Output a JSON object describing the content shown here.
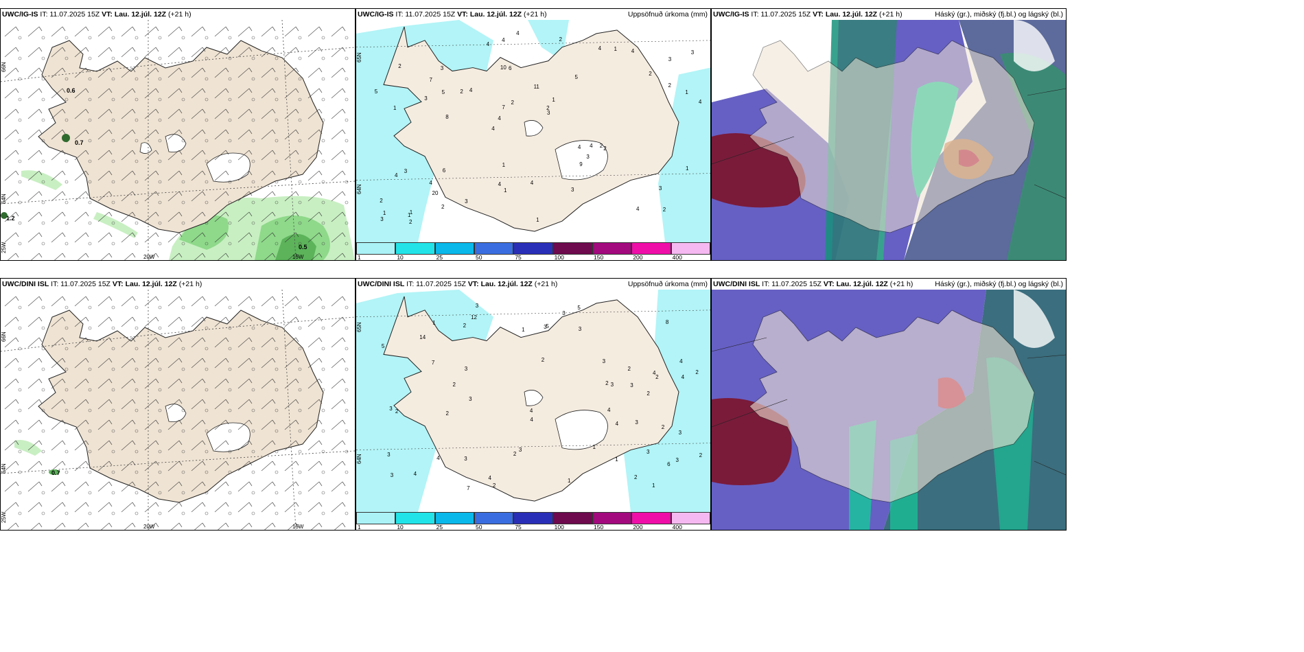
{
  "rows": [
    {
      "model": "UWC/IG-IS",
      "issue": "IT: 11.07.2025 15Z",
      "vt_label": "VT:",
      "vt_value": "Lau. 12.júl. 12Z",
      "lead": "(+21 h)",
      "wind_values": [
        "0.6",
        "0.7",
        "1.2",
        "0.5"
      ],
      "precip_values": [
        "2",
        "1",
        "3",
        "4",
        "5",
        "1",
        "10",
        "11",
        "3",
        "4",
        "2",
        "20",
        "6",
        "1",
        "2",
        "2",
        "4",
        "4",
        "4",
        "2",
        "4",
        "4",
        "7",
        "3",
        "4",
        "6",
        "4",
        "3",
        "2",
        "1",
        "2",
        "3",
        "9",
        "2",
        "1",
        "2",
        "1",
        "1",
        "3",
        "4",
        "2",
        "3",
        "3",
        "3",
        "4",
        "2",
        "3",
        "4",
        "4",
        "4",
        "8",
        "5",
        "7",
        "1",
        "1",
        "2",
        "4",
        "2",
        "1",
        "1",
        "3",
        "4",
        "5"
      ]
    },
    {
      "model": "UWC/DINI ISL",
      "issue": "IT: 11.07.2025 15Z",
      "vt_label": "VT:",
      "vt_value": "Lau. 12.júl. 12Z",
      "lead": "(+21 h)",
      "wind_values": [
        "0.7"
      ],
      "precip_values": [
        "3",
        "4",
        "3",
        "2",
        "3",
        "12",
        "4",
        "3",
        "8",
        "7",
        "4",
        "5",
        "2",
        "2",
        "3",
        "14",
        "6",
        "2",
        "3",
        "2",
        "3",
        "2",
        "1",
        "2",
        "4",
        "2",
        "3",
        "3",
        "3",
        "2",
        "2",
        "1",
        "7",
        "4",
        "2",
        "2",
        "3",
        "1",
        "1",
        "3",
        "3",
        "3",
        "3",
        "2",
        "3",
        "4",
        "4",
        "5",
        "3",
        "2",
        "4",
        "4",
        "5",
        "2",
        "1",
        "4",
        "3",
        "1"
      ]
    }
  ],
  "precip_subtitle": "Uppsöfnuð úrkoma (mm)",
  "cloud_subtitle": "Háský (gr.), miðský (fj.bl.) og lágský (bl.)",
  "axis_labels": {
    "lat66": "66N",
    "lat64": "64N",
    "lon20": "20W",
    "lon15": "15W",
    "lon25": "25W"
  },
  "legend": {
    "colors": [
      "#aaf2f6",
      "#22e4e8",
      "#0ab8ea",
      "#3a6ee0",
      "#2a2fb8",
      "#6e0a4e",
      "#a30a7e",
      "#f00ea8",
      "#f5b8f0"
    ],
    "labels": [
      "1",
      "10",
      "25",
      "50",
      "75",
      "100",
      "150",
      "200",
      "400"
    ]
  },
  "colors": {
    "land": "#efe3d3",
    "precip_light": "#b2f4f7",
    "wind_green_light": "#c8efc2",
    "wind_green_mid": "#8ed98a",
    "wind_green_dark": "#5cb35a",
    "cloud_high": "#6660c4",
    "cloud_mid": "#16c99a",
    "cloud_low": "#7a1b3a"
  }
}
